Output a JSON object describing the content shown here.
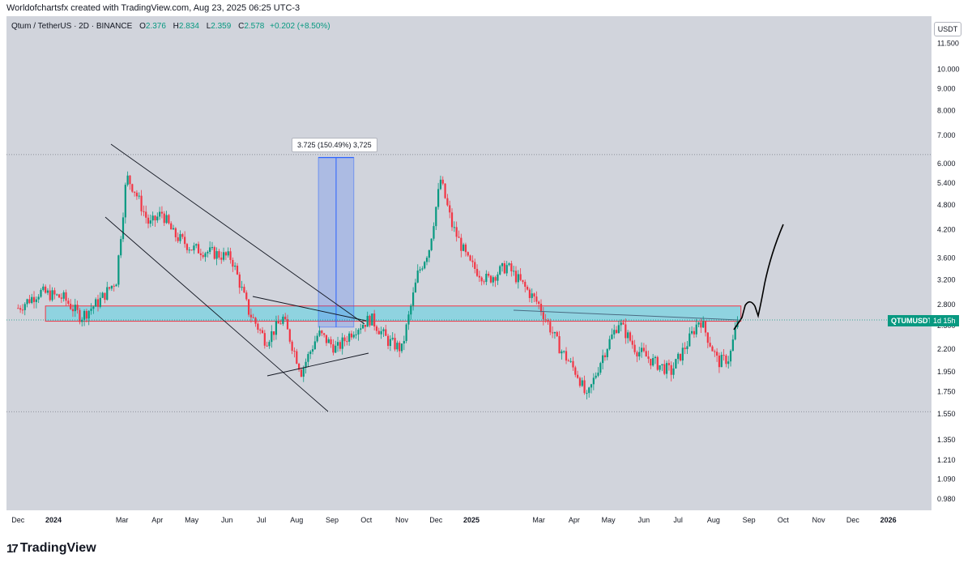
{
  "caption": "Worldofchartsfx created with TradingView.com, Aug 23, 2025 06:25 UTC-3",
  "legend": {
    "symbol": "Qtum / TetherUS · 2D · BINANCE",
    "open_label": "O",
    "open": "2.376",
    "high_label": "H",
    "high": "2.834",
    "low_label": "L",
    "low": "2.359",
    "close_label": "C",
    "close": "2.578",
    "change": "+0.202 (+8.50%)"
  },
  "currency_button": "USDT",
  "last_price_badge": {
    "symbol": "QTUMUSDT",
    "countdown": "1d 15h",
    "color": "#089981"
  },
  "measure_label": "3.725 (150.49%) 3,725",
  "brand": "TradingView",
  "chart_data": {
    "type": "candlestick",
    "scale": "log",
    "y_ticks": [
      "11.500",
      "10.000",
      "9.000",
      "8.000",
      "7.000",
      "6.000",
      "5.400",
      "4.800",
      "4.200",
      "3.600",
      "3.200",
      "2.800",
      "2.500",
      "2.200",
      "1.950",
      "1.750",
      "1.550",
      "1.350",
      "1.210",
      "1.090",
      "0.980"
    ],
    "x_ticks": [
      "Dec",
      "2024",
      "Mar",
      "Apr",
      "May",
      "Jun",
      "Jul",
      "Aug",
      "Sep",
      "Oct",
      "Nov",
      "Dec",
      "2025",
      "Mar",
      "Apr",
      "May",
      "Jun",
      "Jul",
      "Aug",
      "Sep",
      "Oct",
      "Nov",
      "Dec",
      "2026"
    ],
    "colors": {
      "up": "#089981",
      "down": "#f23645",
      "zone": "#8fd3e0"
    },
    "last_price": 2.578,
    "horizontal_levels": [
      6.3,
      1.57
    ],
    "support_zone": [
      2.56,
      2.78
    ],
    "measure": {
      "from": 2.48,
      "to": 6.2
    },
    "anchors": [
      [
        "2023-12-01",
        2.75
      ],
      [
        "2023-12-20",
        3.0
      ],
      [
        "2024-01-10",
        2.9
      ],
      [
        "2024-01-25",
        2.62
      ],
      [
        "2024-02-10",
        2.85
      ],
      [
        "2024-02-25",
        3.2
      ],
      [
        "2024-03-05",
        5.6
      ],
      [
        "2024-03-12",
        5.2
      ],
      [
        "2024-03-25",
        4.3
      ],
      [
        "2024-04-05",
        4.6
      ],
      [
        "2024-04-15",
        4.1
      ],
      [
        "2024-05-01",
        3.8
      ],
      [
        "2024-05-20",
        3.7
      ],
      [
        "2024-06-05",
        3.6
      ],
      [
        "2024-06-20",
        2.7
      ],
      [
        "2024-07-05",
        2.3
      ],
      [
        "2024-07-20",
        2.6
      ],
      [
        "2024-08-05",
        1.95
      ],
      [
        "2024-08-20",
        2.4
      ],
      [
        "2024-09-05",
        2.2
      ],
      [
        "2024-09-20",
        2.45
      ],
      [
        "2024-10-05",
        2.6
      ],
      [
        "2024-10-20",
        2.3
      ],
      [
        "2024-11-01",
        2.2
      ],
      [
        "2024-11-15",
        3.3
      ],
      [
        "2024-11-25",
        3.8
      ],
      [
        "2024-12-05",
        5.5
      ],
      [
        "2024-12-15",
        4.3
      ],
      [
        "2024-12-30",
        3.5
      ],
      [
        "2025-01-15",
        3.2
      ],
      [
        "2025-02-01",
        3.45
      ],
      [
        "2025-02-20",
        3.0
      ],
      [
        "2025-03-01",
        2.8
      ],
      [
        "2025-03-20",
        2.2
      ],
      [
        "2025-04-05",
        1.9
      ],
      [
        "2025-04-12",
        1.68
      ],
      [
        "2025-04-25",
        2.1
      ],
      [
        "2025-05-10",
        2.55
      ],
      [
        "2025-05-25",
        2.2
      ],
      [
        "2025-06-10",
        2.05
      ],
      [
        "2025-06-25",
        1.95
      ],
      [
        "2025-07-10",
        2.3
      ],
      [
        "2025-07-20",
        2.6
      ],
      [
        "2025-08-05",
        2.05
      ],
      [
        "2025-08-15",
        2.1
      ],
      [
        "2025-08-22",
        2.58
      ]
    ]
  }
}
